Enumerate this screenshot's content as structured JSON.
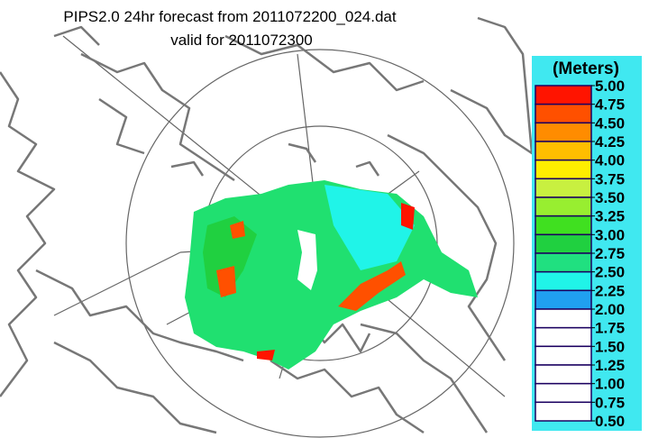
{
  "title": "PIPS2.0 24hr forecast from 2011072200_024.dat",
  "subtitle": "valid for 2011072300",
  "colorbar": {
    "title": "(Meters)",
    "ticks": [
      {
        "value": 5,
        "label": "5.00"
      },
      {
        "value": 4.75,
        "label": "4.75"
      },
      {
        "value": 4.5,
        "label": "4.50"
      },
      {
        "value": 4.25,
        "label": "4.25"
      },
      {
        "value": 4,
        "label": "4.00"
      },
      {
        "value": 3.75,
        "label": "3.75"
      },
      {
        "value": 3.5,
        "label": "3.50"
      },
      {
        "value": 3.25,
        "label": "3.25"
      },
      {
        "value": 3,
        "label": "3.00"
      },
      {
        "value": 2.75,
        "label": "2.75"
      },
      {
        "value": 2.5,
        "label": "2.50"
      },
      {
        "value": 2.25,
        "label": "2.25"
      },
      {
        "value": 2,
        "label": "2.00"
      },
      {
        "value": 1.75,
        "label": "1.75"
      },
      {
        "value": 1.5,
        "label": "1.50"
      },
      {
        "value": 1.25,
        "label": "1.25"
      },
      {
        "value": 1,
        "label": "1.00"
      },
      {
        "value": 0.75,
        "label": "0.75"
      },
      {
        "value": 0.5,
        "label": "0.50"
      }
    ],
    "colors": [
      "#ff1400",
      "#ff5000",
      "#ff8c00",
      "#ffbe00",
      "#ffee00",
      "#c8f040",
      "#98ee30",
      "#40e020",
      "#20d040",
      "#20e080",
      "#20f4e8",
      "#20a0f0",
      "#ffffff",
      "#ffffff",
      "#ffffff",
      "#ffffff",
      "#ffffff",
      "#ffffff"
    ],
    "background": "#40e8f0"
  }
}
